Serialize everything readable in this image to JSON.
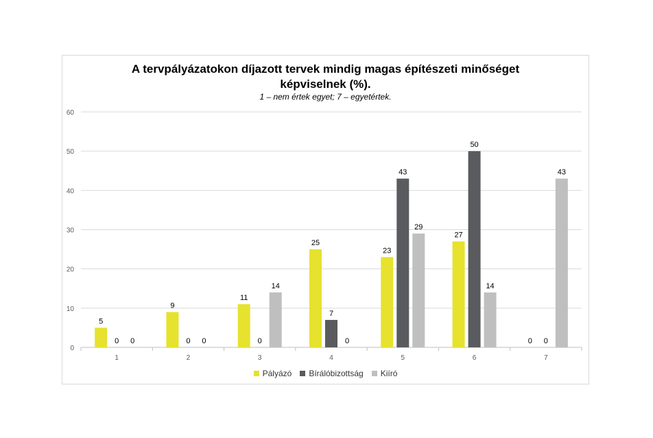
{
  "chart_data": {
    "type": "bar",
    "title": "A tervpályázatokon díjazott tervek mindig magas építészeti minőséget képviselnek (%).",
    "title_line1": "A tervpályázatokon díjazott tervek mindig magas építészeti minőséget",
    "title_line2": "képviselnek (%).",
    "subtitle": "1 – nem értek egyet; 7 – egyetértek.",
    "categories": [
      "1",
      "2",
      "3",
      "4",
      "5",
      "6",
      "7"
    ],
    "series": [
      {
        "name": "Pályázó",
        "color": "#e6e22e",
        "values": [
          5,
          9,
          11,
          25,
          23,
          27,
          0
        ]
      },
      {
        "name": "Bírálóbizottság",
        "color": "#595b5e",
        "values": [
          0,
          0,
          0,
          7,
          43,
          50,
          0
        ]
      },
      {
        "name": "Kiíró",
        "color": "#bfbfbf",
        "values": [
          0,
          0,
          14,
          0,
          29,
          14,
          43
        ]
      }
    ],
    "yticks": [
      0,
      10,
      20,
      30,
      40,
      50,
      60
    ],
    "ylim": [
      0,
      60
    ],
    "grid": true,
    "legend": "bottom",
    "data_labels": true
  }
}
